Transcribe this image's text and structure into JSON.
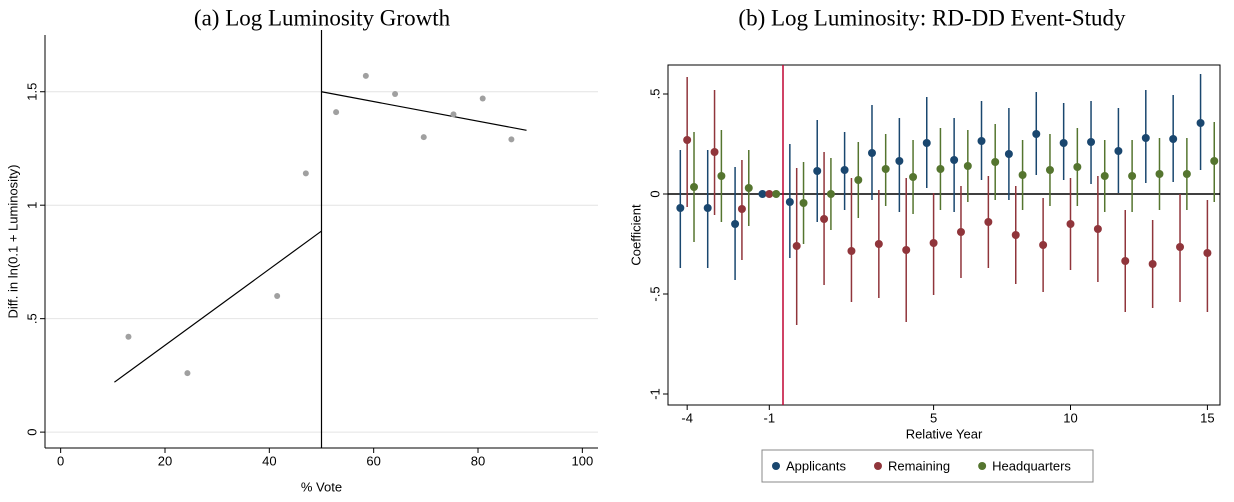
{
  "chart_data": [
    {
      "type": "scatter",
      "title": "(a) Log Luminosity Growth",
      "x_label": "% Vote",
      "y_label": "Diff. in ln(0.1 + Luminosity)",
      "x": [
        13,
        24.3,
        41.5,
        47,
        52.8,
        58.5,
        64.1,
        69.6,
        75.3,
        80.9,
        86.4
      ],
      "y": [
        0.42,
        0.26,
        0.6,
        1.14,
        1.41,
        1.57,
        1.49,
        1.3,
        1.4,
        1.47,
        1.29
      ],
      "color": "#a0a0a0",
      "fit_lines": [
        {
          "x": [
            10.3,
            50
          ],
          "y": [
            0.22,
            0.886
          ]
        },
        {
          "x": [
            50,
            89.3
          ],
          "y": [
            1.5,
            1.33
          ]
        }
      ],
      "line_color": "#000000",
      "cutoff": 50,
      "xlim": [
        -3,
        103
      ],
      "ylim": [
        -0.07,
        1.75
      ],
      "xticks": [
        0,
        20,
        40,
        60,
        80,
        100
      ],
      "yticks": [
        0,
        {
          "value": 0.5,
          "label": ".5"
        },
        1,
        1.5
      ],
      "grid": true
    },
    {
      "type": "errorbar",
      "title": "(b) Log Luminosity: RD-DD Event-Study",
      "x_label": "Relative Year",
      "y_label": "Coefficient",
      "x": [
        -4,
        -3,
        -2,
        -1,
        0,
        1,
        2,
        3,
        4,
        5,
        6,
        7,
        8,
        9,
        10,
        11,
        12,
        13,
        14,
        15
      ],
      "series": [
        {
          "name": "Applicants",
          "color": "#1a476f",
          "values": [
            -0.07,
            -0.07,
            -0.15,
            0,
            -0.04,
            0.115,
            0.12,
            0.205,
            0.165,
            0.255,
            0.17,
            0.265,
            0.2,
            0.3,
            0.255,
            0.26,
            0.215,
            0.28,
            0.275,
            0.355
          ],
          "lower": [
            -0.37,
            -0.37,
            -0.43,
            null,
            -0.32,
            -0.14,
            -0.08,
            -0.03,
            -0.09,
            0.03,
            -0.09,
            0.07,
            -0.03,
            0.095,
            0.07,
            0.05,
            0.005,
            0.055,
            0.06,
            0.12
          ],
          "upper": [
            0.22,
            0.22,
            0.135,
            null,
            0.25,
            0.37,
            0.31,
            0.445,
            0.38,
            0.485,
            0.38,
            0.465,
            0.43,
            0.51,
            0.455,
            0.465,
            0.43,
            0.52,
            0.495,
            0.6
          ]
        },
        {
          "name": "Remaining",
          "color": "#90353b",
          "values": [
            0.27,
            0.21,
            -0.075,
            0,
            -0.26,
            -0.125,
            -0.285,
            -0.25,
            -0.28,
            -0.245,
            -0.19,
            -0.14,
            -0.205,
            -0.255,
            -0.15,
            -0.175,
            -0.335,
            -0.35,
            -0.265,
            -0.295
          ],
          "lower": [
            -0.065,
            -0.105,
            -0.33,
            null,
            -0.655,
            -0.455,
            -0.54,
            -0.52,
            -0.64,
            -0.505,
            -0.42,
            -0.37,
            -0.45,
            -0.49,
            -0.38,
            -0.44,
            -0.59,
            -0.57,
            -0.54,
            -0.59
          ],
          "upper": [
            0.585,
            0.52,
            0.17,
            null,
            0.13,
            0.21,
            0.08,
            0.02,
            0.08,
            0.005,
            0.04,
            0.09,
            0.04,
            -0.02,
            0.08,
            0.09,
            -0.08,
            -0.13,
            0,
            -0.03
          ]
        },
        {
          "name": "Headquarters",
          "color": "#55752f",
          "values": [
            0.035,
            0.09,
            0.03,
            0,
            -0.045,
            0,
            0.07,
            0.125,
            0.085,
            0.125,
            0.14,
            0.16,
            0.095,
            0.12,
            0.135,
            0.09,
            0.09,
            0.1,
            0.1,
            0.165
          ],
          "lower": [
            -0.24,
            -0.14,
            -0.16,
            null,
            -0.25,
            -0.18,
            -0.12,
            -0.06,
            -0.1,
            -0.08,
            -0.04,
            -0.03,
            -0.08,
            -0.06,
            -0.06,
            -0.09,
            -0.09,
            -0.08,
            -0.08,
            -0.04
          ],
          "upper": [
            0.31,
            0.32,
            0.22,
            null,
            0.16,
            0.18,
            0.26,
            0.3,
            0.27,
            0.33,
            0.32,
            0.35,
            0.27,
            0.3,
            0.33,
            0.27,
            0.27,
            0.28,
            0.28,
            0.36
          ]
        }
      ],
      "reference_x": -0.5,
      "reference_x_color": "#c10534",
      "reference_y": 0,
      "xlim": [
        -4.7,
        15.46
      ],
      "ylim": [
        -1.055,
        0.645
      ],
      "xticks": [
        -4,
        -1,
        5,
        10,
        15
      ],
      "yticks": [
        -1,
        {
          "value": -0.5,
          "label": "-.5"
        },
        0,
        {
          "value": 0.5,
          "label": ".5"
        }
      ],
      "grid": false,
      "legend": "bottom"
    }
  ]
}
